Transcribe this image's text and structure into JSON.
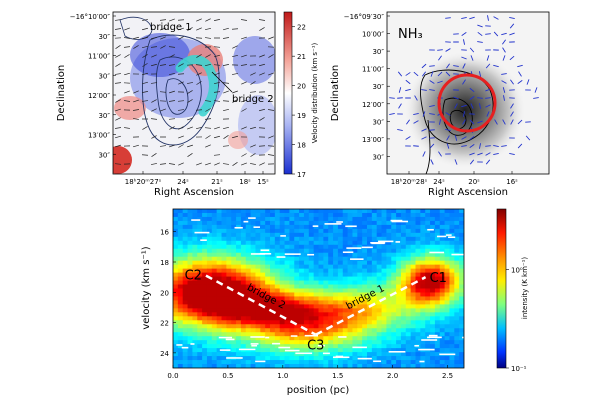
{
  "chart_data": [
    {
      "type": "heatmap",
      "panel": "top-left",
      "annotations": {
        "bridge1": "bridge 1",
        "bridge2": "bridge 2"
      },
      "xlabel": "Right Ascension",
      "ylabel": "Declination",
      "xticks": [
        "18ʰ20ᵐ27ˢ",
        "24ˢ",
        "21ˢ",
        "18ˢ",
        "15ˢ"
      ],
      "yticks": [
        "−16°10′00″",
        "30″",
        "11′00″",
        "30″",
        "12′00″",
        "30″",
        "13′00″",
        "30″"
      ],
      "colorbar": {
        "label": "Velocity distribution (km s⁻¹)",
        "ticks": [
          22,
          21,
          20,
          19,
          18,
          17
        ],
        "range": [
          17,
          22.5
        ],
        "colors": {
          "high": "#d62f27",
          "mid": "#ffffff",
          "low": "#2b3cd6"
        }
      },
      "overlay": {
        "arc_color": "#3fd3d0",
        "contour_color": "#223366"
      }
    },
    {
      "type": "heatmap",
      "panel": "top-right",
      "title": "NH₃",
      "xlabel": "Right Ascension",
      "ylabel": "Declination",
      "xticks": [
        "18ʰ20ᵐ28ˢ",
        "24ˢ",
        "20ˢ",
        "16ˢ"
      ],
      "yticks": [
        "−16°09′30″",
        "10′00″",
        "30″",
        "11′00″",
        "30″",
        "12′00″",
        "30″",
        "13′00″",
        "30″"
      ],
      "overlay": {
        "circle_color": "#e62020",
        "vector_color": "#2233cc"
      }
    },
    {
      "type": "heatmap",
      "panel": "bottom",
      "xlabel": "position (pc)",
      "ylabel": "velocity (km s⁻¹)",
      "xlim": [
        0.0,
        2.65
      ],
      "ylim": [
        25,
        14.5
      ],
      "xticks": [
        "0.0",
        "0.5",
        "1.0",
        "1.5",
        "2.0",
        "2.5"
      ],
      "yticks": [
        "16",
        "18",
        "20",
        "22",
        "24"
      ],
      "colorbar": {
        "label": "intensity (K km⁻¹)",
        "ticks": [
          "10⁰",
          "10⁻¹"
        ],
        "scale": "log"
      },
      "points": [
        {
          "label": "C2",
          "x": 0.3,
          "y": 18.9
        },
        {
          "label": "C3",
          "x": 1.3,
          "y": 22.8
        },
        {
          "label": "C1",
          "x": 2.3,
          "y": 19.0
        }
      ],
      "bridge_labels": {
        "bridge2": "bridge 2",
        "bridge1": "bridge 1"
      },
      "blobs": [
        {
          "x": 0.35,
          "y": 20.0,
          "sx": 0.55,
          "sy": 2.2,
          "amp": 1.0
        },
        {
          "x": 2.35,
          "y": 19.3,
          "sx": 0.28,
          "sy": 1.6,
          "amp": 0.85
        },
        {
          "x": 1.2,
          "y": 22.4,
          "sx": 0.55,
          "sy": 1.6,
          "amp": 0.55
        },
        {
          "x": 0.9,
          "y": 21.0,
          "sx": 0.5,
          "sy": 1.2,
          "amp": 0.45
        },
        {
          "x": 1.75,
          "y": 21.0,
          "sx": 0.5,
          "sy": 1.6,
          "amp": 0.4
        }
      ]
    }
  ]
}
